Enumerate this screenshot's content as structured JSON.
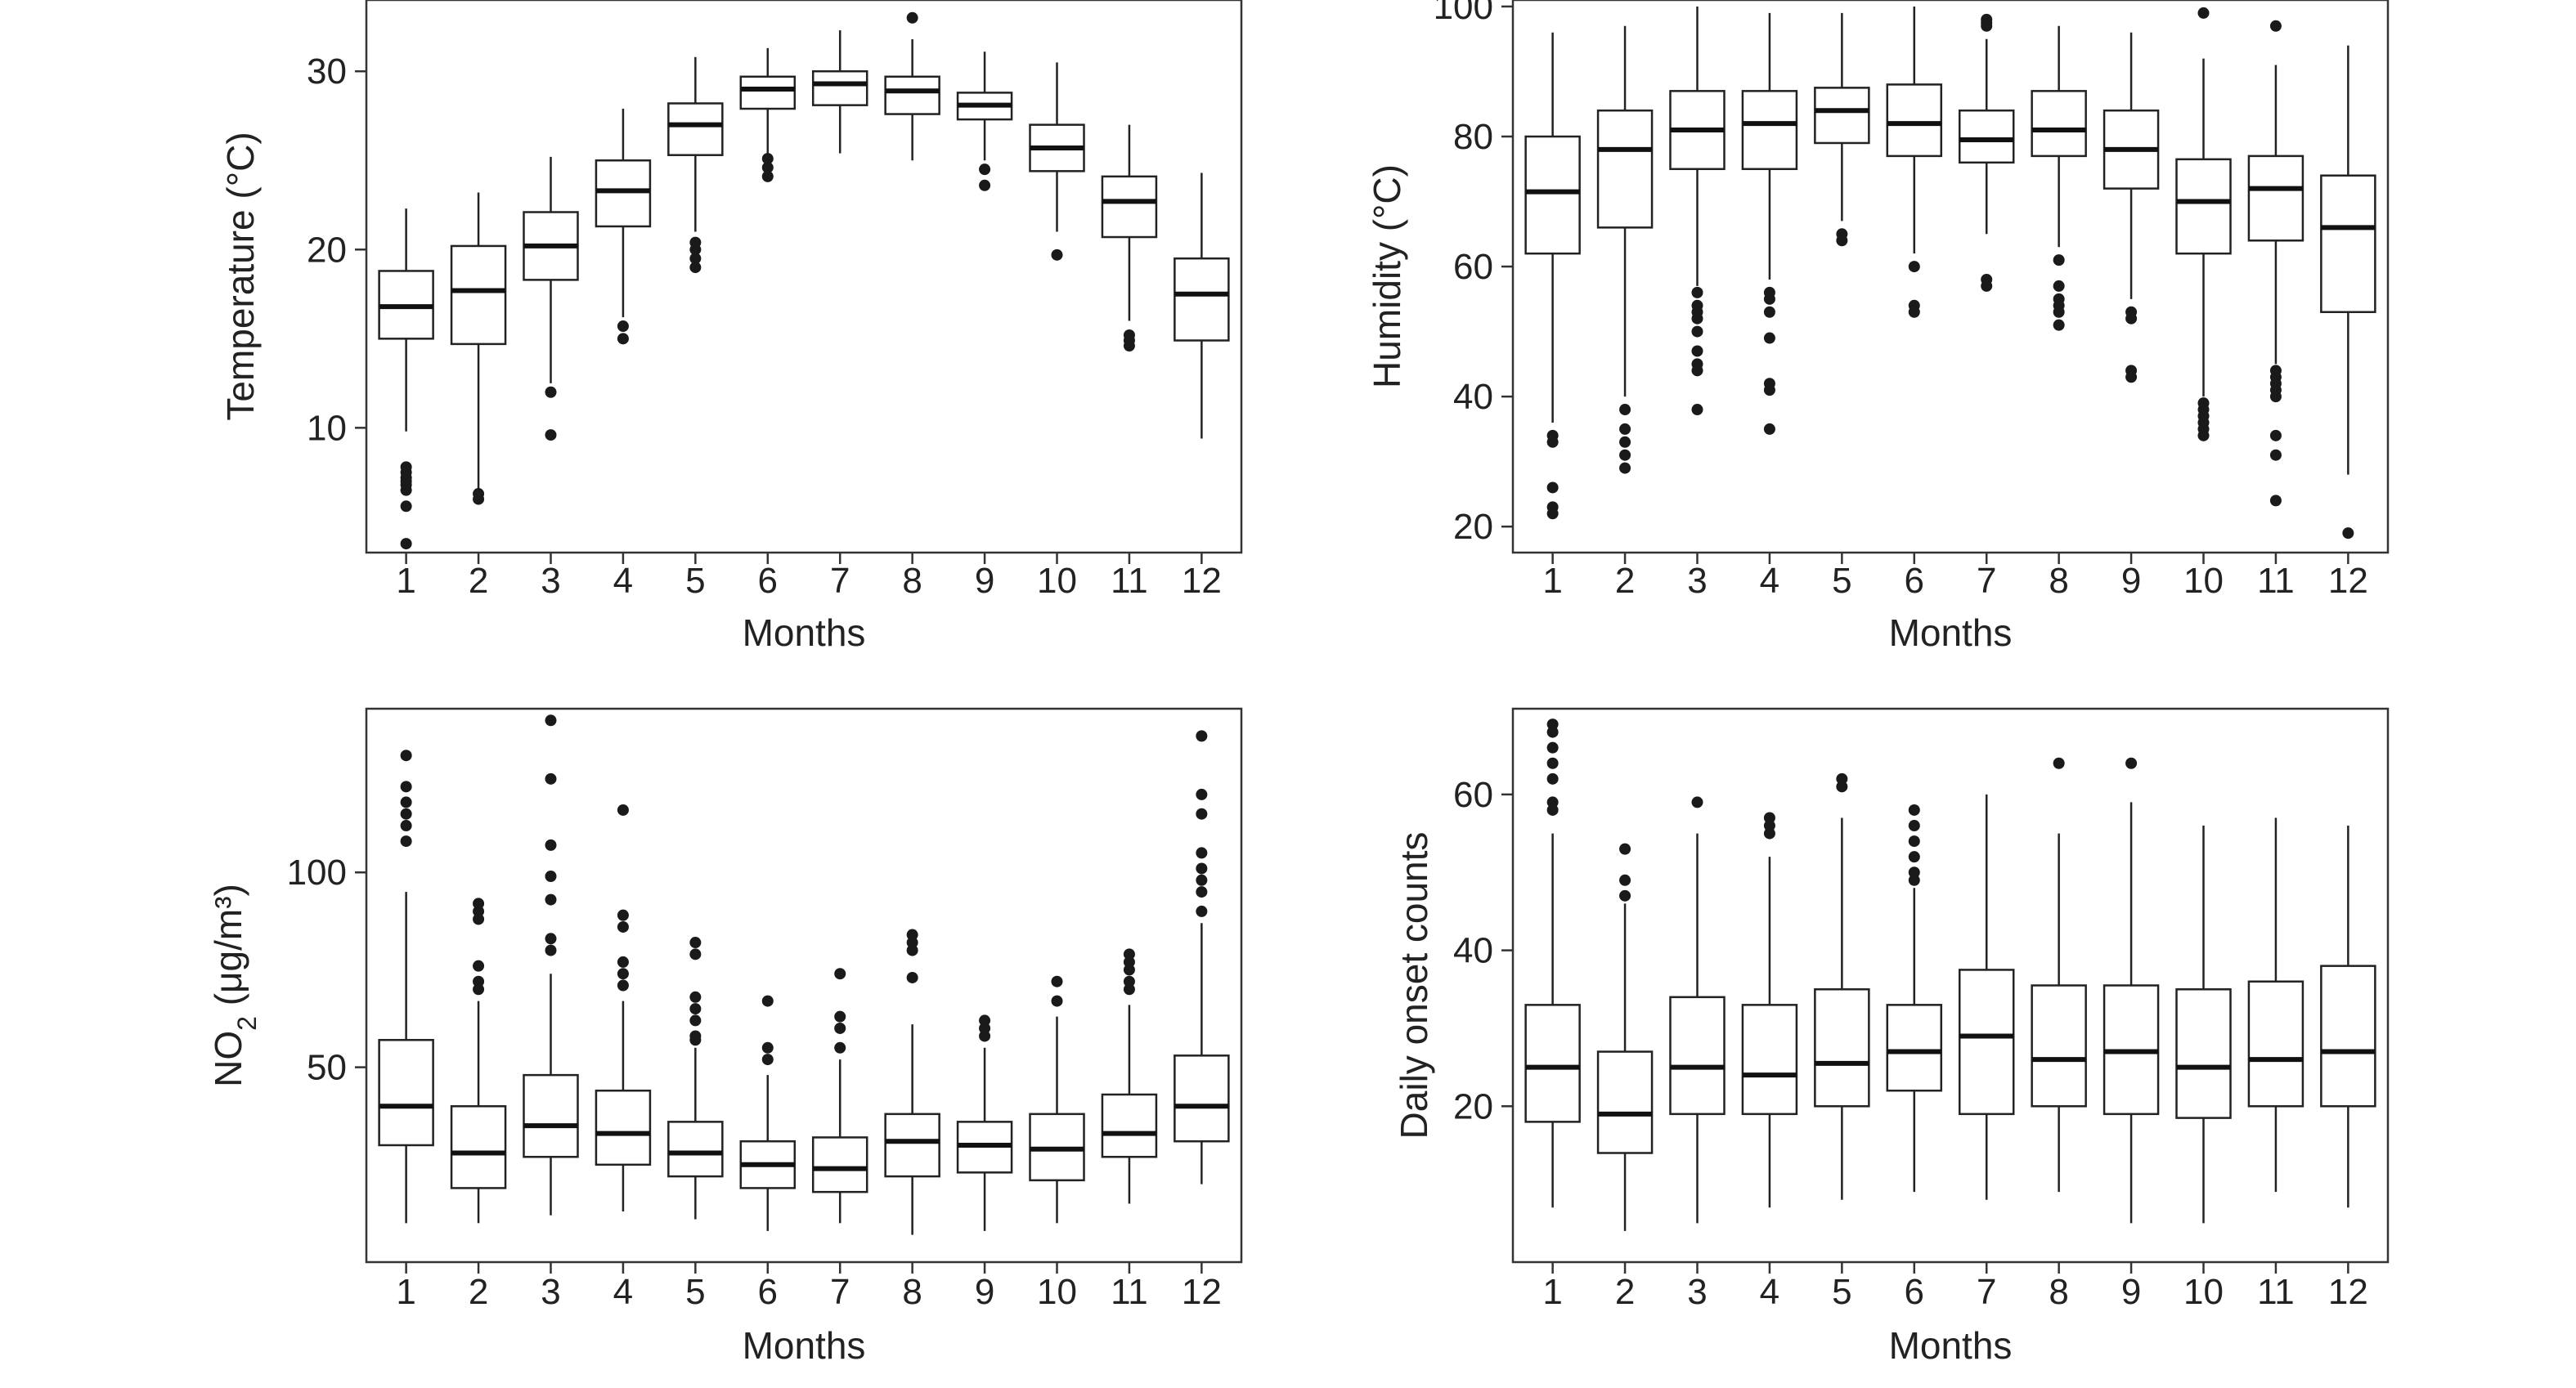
{
  "chart_data": [
    {
      "type": "box",
      "xlabel": "Months",
      "ylabel": "Temperature (°C)",
      "ylabel_sub": "",
      "ylabel_rest": "",
      "ylim": [
        3,
        34
      ],
      "yticks": [
        10,
        20,
        30
      ],
      "categories": [
        "1",
        "2",
        "3",
        "4",
        "5",
        "6",
        "7",
        "8",
        "9",
        "10",
        "11",
        "12"
      ],
      "boxes": [
        {
          "min": 9.8,
          "q1": 15.0,
          "median": 16.8,
          "q3": 18.8,
          "max": 22.3,
          "outliers": [
            7.8,
            7.5,
            7.2,
            7.0,
            6.8,
            6.5,
            5.6,
            3.5
          ]
        },
        {
          "min": 6.5,
          "q1": 14.7,
          "median": 17.7,
          "q3": 20.2,
          "max": 23.2,
          "outliers": [
            6.3,
            6.0
          ]
        },
        {
          "min": 12.5,
          "q1": 18.3,
          "median": 20.2,
          "q3": 22.1,
          "max": 25.2,
          "outliers": [
            12.0,
            9.6
          ]
        },
        {
          "min": 16.2,
          "q1": 21.3,
          "median": 23.3,
          "q3": 25.0,
          "max": 27.9,
          "outliers": [
            15.7,
            15.0
          ]
        },
        {
          "min": 21.0,
          "q1": 25.3,
          "median": 27.0,
          "q3": 28.2,
          "max": 30.8,
          "outliers": [
            20.4,
            20.0,
            19.5,
            19.0
          ]
        },
        {
          "min": 25.3,
          "q1": 27.9,
          "median": 29.0,
          "q3": 29.7,
          "max": 31.3,
          "outliers": [
            25.1,
            24.6,
            24.1
          ]
        },
        {
          "min": 25.4,
          "q1": 28.1,
          "median": 29.3,
          "q3": 30.0,
          "max": 32.3,
          "outliers": []
        },
        {
          "min": 25.0,
          "q1": 27.6,
          "median": 28.9,
          "q3": 29.7,
          "max": 31.8,
          "outliers": [
            33.0
          ]
        },
        {
          "min": 25.0,
          "q1": 27.3,
          "median": 28.1,
          "q3": 28.8,
          "max": 31.1,
          "outliers": [
            24.5,
            23.6
          ]
        },
        {
          "min": 21.0,
          "q1": 24.4,
          "median": 25.7,
          "q3": 27.0,
          "max": 30.5,
          "outliers": [
            19.7
          ]
        },
        {
          "min": 16.0,
          "q1": 20.7,
          "median": 22.7,
          "q3": 24.1,
          "max": 27.0,
          "outliers": [
            15.2,
            14.9,
            14.6
          ]
        },
        {
          "min": 9.4,
          "q1": 14.9,
          "median": 17.5,
          "q3": 19.5,
          "max": 24.3,
          "outliers": []
        }
      ]
    },
    {
      "type": "box",
      "xlabel": "Months",
      "ylabel": "Humidity (°C)",
      "ylabel_sub": "",
      "ylabel_rest": "",
      "ylim": [
        16,
        101
      ],
      "yticks": [
        20,
        40,
        60,
        80,
        100
      ],
      "categories": [
        "1",
        "2",
        "3",
        "4",
        "5",
        "6",
        "7",
        "8",
        "9",
        "10",
        "11",
        "12"
      ],
      "boxes": [
        {
          "min": 36,
          "q1": 62,
          "median": 71.5,
          "q3": 80,
          "max": 96,
          "outliers": [
            34,
            33,
            26,
            23,
            22
          ]
        },
        {
          "min": 40,
          "q1": 66,
          "median": 78,
          "q3": 84,
          "max": 97,
          "outliers": [
            38,
            35,
            33,
            31,
            29
          ]
        },
        {
          "min": 57,
          "q1": 75,
          "median": 81,
          "q3": 87,
          "max": 100,
          "outliers": [
            56,
            54,
            53,
            52,
            50,
            47,
            45,
            44,
            38
          ]
        },
        {
          "min": 58,
          "q1": 75,
          "median": 82,
          "q3": 87,
          "max": 99,
          "outliers": [
            56,
            55,
            53,
            49,
            42,
            41,
            35
          ]
        },
        {
          "min": 67,
          "q1": 79,
          "median": 84,
          "q3": 87.5,
          "max": 99,
          "outliers": [
            65,
            64
          ]
        },
        {
          "min": 62,
          "q1": 77,
          "median": 82,
          "q3": 88,
          "max": 100,
          "outliers": [
            60,
            54,
            53
          ]
        },
        {
          "min": 65,
          "q1": 76,
          "median": 79.5,
          "q3": 84,
          "max": 95,
          "outliers": [
            98,
            97.5,
            97,
            58,
            57
          ]
        },
        {
          "min": 63,
          "q1": 77,
          "median": 81,
          "q3": 87,
          "max": 97,
          "outliers": [
            61,
            57,
            55,
            54,
            53,
            51
          ]
        },
        {
          "min": 55,
          "q1": 72,
          "median": 78,
          "q3": 84,
          "max": 96,
          "outliers": [
            53,
            52,
            44,
            43
          ]
        },
        {
          "min": 40,
          "q1": 62,
          "median": 70,
          "q3": 76.5,
          "max": 92,
          "outliers": [
            99,
            39,
            38,
            37,
            36,
            35,
            34
          ]
        },
        {
          "min": 45,
          "q1": 64,
          "median": 72,
          "q3": 77,
          "max": 91,
          "outliers": [
            97,
            44,
            43,
            42,
            41,
            40,
            34,
            31,
            24
          ]
        },
        {
          "min": 28,
          "q1": 53,
          "median": 66,
          "q3": 74,
          "max": 94,
          "outliers": [
            19
          ]
        }
      ]
    },
    {
      "type": "box",
      "xlabel": "Months",
      "ylabel": "NO",
      "ylabel_sub": "2",
      "ylabel_rest": " (μg/m³)",
      "ylim": [
        0,
        142
      ],
      "yticks": [
        50,
        100
      ],
      "categories": [
        "1",
        "2",
        "3",
        "4",
        "5",
        "6",
        "7",
        "8",
        "9",
        "10",
        "11",
        "12"
      ],
      "boxes": [
        {
          "min": 10,
          "q1": 30,
          "median": 40,
          "q3": 57,
          "max": 95,
          "outliers": [
            130,
            122,
            118,
            115,
            112,
            108
          ]
        },
        {
          "min": 10,
          "q1": 19,
          "median": 28,
          "q3": 40,
          "max": 67,
          "outliers": [
            92,
            90,
            88,
            76,
            72,
            70
          ]
        },
        {
          "min": 12,
          "q1": 27,
          "median": 35,
          "q3": 48,
          "max": 74,
          "outliers": [
            139,
            124,
            107,
            99,
            93,
            83,
            80
          ]
        },
        {
          "min": 13,
          "q1": 25,
          "median": 33,
          "q3": 44,
          "max": 67,
          "outliers": [
            116,
            89,
            86,
            77,
            74,
            71
          ]
        },
        {
          "min": 11,
          "q1": 22,
          "median": 28,
          "q3": 36,
          "max": 55,
          "outliers": [
            82,
            79,
            68,
            65,
            62,
            58,
            57
          ]
        },
        {
          "min": 8,
          "q1": 19,
          "median": 25,
          "q3": 31,
          "max": 48,
          "outliers": [
            67,
            55,
            52
          ]
        },
        {
          "min": 10,
          "q1": 18,
          "median": 24,
          "q3": 32,
          "max": 52,
          "outliers": [
            74,
            63,
            60,
            55
          ]
        },
        {
          "min": 7,
          "q1": 22,
          "median": 31,
          "q3": 38,
          "max": 61,
          "outliers": [
            84,
            82,
            80,
            73
          ]
        },
        {
          "min": 8,
          "q1": 23,
          "median": 30,
          "q3": 36,
          "max": 55,
          "outliers": [
            62,
            60,
            58
          ]
        },
        {
          "min": 10,
          "q1": 21,
          "median": 29,
          "q3": 38,
          "max": 63,
          "outliers": [
            72,
            67
          ]
        },
        {
          "min": 15,
          "q1": 27,
          "median": 33,
          "q3": 43,
          "max": 66,
          "outliers": [
            79,
            77,
            75,
            72,
            70
          ]
        },
        {
          "min": 20,
          "q1": 31,
          "median": 40,
          "q3": 53,
          "max": 87,
          "outliers": [
            135,
            120,
            115,
            105,
            101,
            98,
            95,
            90
          ]
        }
      ]
    },
    {
      "type": "box",
      "xlabel": "Months",
      "ylabel": "Daily onset counts",
      "ylabel_sub": "",
      "ylabel_rest": "",
      "ylim": [
        0,
        71
      ],
      "yticks": [
        20,
        40,
        60
      ],
      "categories": [
        "1",
        "2",
        "3",
        "4",
        "5",
        "6",
        "7",
        "8",
        "9",
        "10",
        "11",
        "12"
      ],
      "boxes": [
        {
          "min": 7,
          "q1": 18,
          "median": 25,
          "q3": 33,
          "max": 55,
          "outliers": [
            69,
            68,
            66,
            64,
            62,
            59,
            58
          ]
        },
        {
          "min": 4,
          "q1": 14,
          "median": 19,
          "q3": 27,
          "max": 46,
          "outliers": [
            53,
            49,
            47
          ]
        },
        {
          "min": 5,
          "q1": 19,
          "median": 25,
          "q3": 34,
          "max": 55,
          "outliers": [
            59
          ]
        },
        {
          "min": 7,
          "q1": 19,
          "median": 24,
          "q3": 33,
          "max": 52,
          "outliers": [
            57,
            56,
            55
          ]
        },
        {
          "min": 8,
          "q1": 20,
          "median": 25.5,
          "q3": 35,
          "max": 57,
          "outliers": [
            62,
            61
          ]
        },
        {
          "min": 9,
          "q1": 22,
          "median": 27,
          "q3": 33,
          "max": 48,
          "outliers": [
            58,
            56,
            54,
            52,
            50,
            49
          ]
        },
        {
          "min": 8,
          "q1": 19,
          "median": 29,
          "q3": 37.5,
          "max": 60,
          "outliers": []
        },
        {
          "min": 9,
          "q1": 20,
          "median": 26,
          "q3": 35.5,
          "max": 55,
          "outliers": [
            64
          ]
        },
        {
          "min": 5,
          "q1": 19,
          "median": 27,
          "q3": 35.5,
          "max": 59,
          "outliers": [
            64
          ]
        },
        {
          "min": 5,
          "q1": 18.5,
          "median": 25,
          "q3": 35,
          "max": 56,
          "outliers": []
        },
        {
          "min": 9,
          "q1": 20,
          "median": 26,
          "q3": 36,
          "max": 57,
          "outliers": []
        },
        {
          "min": 7,
          "q1": 20,
          "median": 27,
          "q3": 38,
          "max": 56,
          "outliers": []
        }
      ]
    }
  ]
}
